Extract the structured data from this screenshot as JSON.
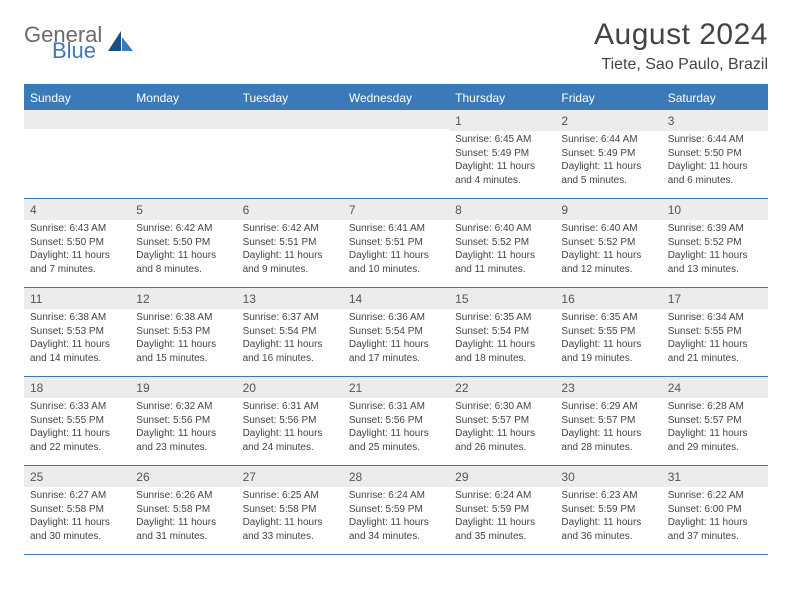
{
  "logo": {
    "part1": "General",
    "part2": "Blue"
  },
  "header": {
    "title": "August 2024",
    "location": "Tiete, Sao Paulo, Brazil"
  },
  "colors": {
    "brand_blue": "#3a7ab8",
    "header_text": "#444444",
    "cell_text": "#444444",
    "daynum_bg": "#ececec",
    "white": "#ffffff"
  },
  "weekdays": [
    "Sunday",
    "Monday",
    "Tuesday",
    "Wednesday",
    "Thursday",
    "Friday",
    "Saturday"
  ],
  "weeks": [
    [
      {
        "empty": true
      },
      {
        "empty": true
      },
      {
        "empty": true
      },
      {
        "empty": true
      },
      {
        "day": "1",
        "sunrise": "Sunrise: 6:45 AM",
        "sunset": "Sunset: 5:49 PM",
        "daylight1": "Daylight: 11 hours",
        "daylight2": "and 4 minutes."
      },
      {
        "day": "2",
        "sunrise": "Sunrise: 6:44 AM",
        "sunset": "Sunset: 5:49 PM",
        "daylight1": "Daylight: 11 hours",
        "daylight2": "and 5 minutes."
      },
      {
        "day": "3",
        "sunrise": "Sunrise: 6:44 AM",
        "sunset": "Sunset: 5:50 PM",
        "daylight1": "Daylight: 11 hours",
        "daylight2": "and 6 minutes."
      }
    ],
    [
      {
        "day": "4",
        "sunrise": "Sunrise: 6:43 AM",
        "sunset": "Sunset: 5:50 PM",
        "daylight1": "Daylight: 11 hours",
        "daylight2": "and 7 minutes."
      },
      {
        "day": "5",
        "sunrise": "Sunrise: 6:42 AM",
        "sunset": "Sunset: 5:50 PM",
        "daylight1": "Daylight: 11 hours",
        "daylight2": "and 8 minutes."
      },
      {
        "day": "6",
        "sunrise": "Sunrise: 6:42 AM",
        "sunset": "Sunset: 5:51 PM",
        "daylight1": "Daylight: 11 hours",
        "daylight2": "and 9 minutes."
      },
      {
        "day": "7",
        "sunrise": "Sunrise: 6:41 AM",
        "sunset": "Sunset: 5:51 PM",
        "daylight1": "Daylight: 11 hours",
        "daylight2": "and 10 minutes."
      },
      {
        "day": "8",
        "sunrise": "Sunrise: 6:40 AM",
        "sunset": "Sunset: 5:52 PM",
        "daylight1": "Daylight: 11 hours",
        "daylight2": "and 11 minutes."
      },
      {
        "day": "9",
        "sunrise": "Sunrise: 6:40 AM",
        "sunset": "Sunset: 5:52 PM",
        "daylight1": "Daylight: 11 hours",
        "daylight2": "and 12 minutes."
      },
      {
        "day": "10",
        "sunrise": "Sunrise: 6:39 AM",
        "sunset": "Sunset: 5:52 PM",
        "daylight1": "Daylight: 11 hours",
        "daylight2": "and 13 minutes."
      }
    ],
    [
      {
        "day": "11",
        "sunrise": "Sunrise: 6:38 AM",
        "sunset": "Sunset: 5:53 PM",
        "daylight1": "Daylight: 11 hours",
        "daylight2": "and 14 minutes."
      },
      {
        "day": "12",
        "sunrise": "Sunrise: 6:38 AM",
        "sunset": "Sunset: 5:53 PM",
        "daylight1": "Daylight: 11 hours",
        "daylight2": "and 15 minutes."
      },
      {
        "day": "13",
        "sunrise": "Sunrise: 6:37 AM",
        "sunset": "Sunset: 5:54 PM",
        "daylight1": "Daylight: 11 hours",
        "daylight2": "and 16 minutes."
      },
      {
        "day": "14",
        "sunrise": "Sunrise: 6:36 AM",
        "sunset": "Sunset: 5:54 PM",
        "daylight1": "Daylight: 11 hours",
        "daylight2": "and 17 minutes."
      },
      {
        "day": "15",
        "sunrise": "Sunrise: 6:35 AM",
        "sunset": "Sunset: 5:54 PM",
        "daylight1": "Daylight: 11 hours",
        "daylight2": "and 18 minutes."
      },
      {
        "day": "16",
        "sunrise": "Sunrise: 6:35 AM",
        "sunset": "Sunset: 5:55 PM",
        "daylight1": "Daylight: 11 hours",
        "daylight2": "and 19 minutes."
      },
      {
        "day": "17",
        "sunrise": "Sunrise: 6:34 AM",
        "sunset": "Sunset: 5:55 PM",
        "daylight1": "Daylight: 11 hours",
        "daylight2": "and 21 minutes."
      }
    ],
    [
      {
        "day": "18",
        "sunrise": "Sunrise: 6:33 AM",
        "sunset": "Sunset: 5:55 PM",
        "daylight1": "Daylight: 11 hours",
        "daylight2": "and 22 minutes."
      },
      {
        "day": "19",
        "sunrise": "Sunrise: 6:32 AM",
        "sunset": "Sunset: 5:56 PM",
        "daylight1": "Daylight: 11 hours",
        "daylight2": "and 23 minutes."
      },
      {
        "day": "20",
        "sunrise": "Sunrise: 6:31 AM",
        "sunset": "Sunset: 5:56 PM",
        "daylight1": "Daylight: 11 hours",
        "daylight2": "and 24 minutes."
      },
      {
        "day": "21",
        "sunrise": "Sunrise: 6:31 AM",
        "sunset": "Sunset: 5:56 PM",
        "daylight1": "Daylight: 11 hours",
        "daylight2": "and 25 minutes."
      },
      {
        "day": "22",
        "sunrise": "Sunrise: 6:30 AM",
        "sunset": "Sunset: 5:57 PM",
        "daylight1": "Daylight: 11 hours",
        "daylight2": "and 26 minutes."
      },
      {
        "day": "23",
        "sunrise": "Sunrise: 6:29 AM",
        "sunset": "Sunset: 5:57 PM",
        "daylight1": "Daylight: 11 hours",
        "daylight2": "and 28 minutes."
      },
      {
        "day": "24",
        "sunrise": "Sunrise: 6:28 AM",
        "sunset": "Sunset: 5:57 PM",
        "daylight1": "Daylight: 11 hours",
        "daylight2": "and 29 minutes."
      }
    ],
    [
      {
        "day": "25",
        "sunrise": "Sunrise: 6:27 AM",
        "sunset": "Sunset: 5:58 PM",
        "daylight1": "Daylight: 11 hours",
        "daylight2": "and 30 minutes."
      },
      {
        "day": "26",
        "sunrise": "Sunrise: 6:26 AM",
        "sunset": "Sunset: 5:58 PM",
        "daylight1": "Daylight: 11 hours",
        "daylight2": "and 31 minutes."
      },
      {
        "day": "27",
        "sunrise": "Sunrise: 6:25 AM",
        "sunset": "Sunset: 5:58 PM",
        "daylight1": "Daylight: 11 hours",
        "daylight2": "and 33 minutes."
      },
      {
        "day": "28",
        "sunrise": "Sunrise: 6:24 AM",
        "sunset": "Sunset: 5:59 PM",
        "daylight1": "Daylight: 11 hours",
        "daylight2": "and 34 minutes."
      },
      {
        "day": "29",
        "sunrise": "Sunrise: 6:24 AM",
        "sunset": "Sunset: 5:59 PM",
        "daylight1": "Daylight: 11 hours",
        "daylight2": "and 35 minutes."
      },
      {
        "day": "30",
        "sunrise": "Sunrise: 6:23 AM",
        "sunset": "Sunset: 5:59 PM",
        "daylight1": "Daylight: 11 hours",
        "daylight2": "and 36 minutes."
      },
      {
        "day": "31",
        "sunrise": "Sunrise: 6:22 AM",
        "sunset": "Sunset: 6:00 PM",
        "daylight1": "Daylight: 11 hours",
        "daylight2": "and 37 minutes."
      }
    ]
  ]
}
